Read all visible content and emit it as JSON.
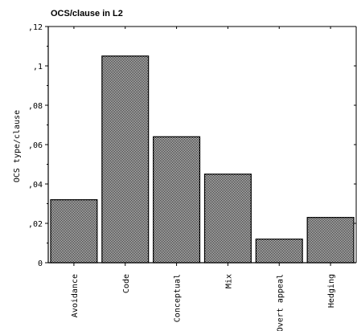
{
  "chart_data": {
    "type": "bar",
    "title": "OCS/clause in L2",
    "ylabel": "OCS type/clause",
    "xlabel": "",
    "categories": [
      "Avoidance",
      "Code",
      "Conceptual",
      "Mix",
      "Overt appeal",
      "Hedging"
    ],
    "values": [
      0.032,
      0.105,
      0.064,
      0.045,
      0.012,
      0.023
    ],
    "ylim": [
      0,
      0.12
    ],
    "yticks": [
      {
        "value": 0,
        "label": "0"
      },
      {
        "value": 0.02,
        "label": ",02"
      },
      {
        "value": 0.04,
        "label": ",04"
      },
      {
        "value": 0.06,
        "label": ",06"
      },
      {
        "value": 0.08,
        "label": ",08"
      },
      {
        "value": 0.1,
        "label": ",1"
      },
      {
        "value": 0.12,
        "label": ",12"
      }
    ],
    "grid": false,
    "bar_fill": "#9a9a9a"
  }
}
